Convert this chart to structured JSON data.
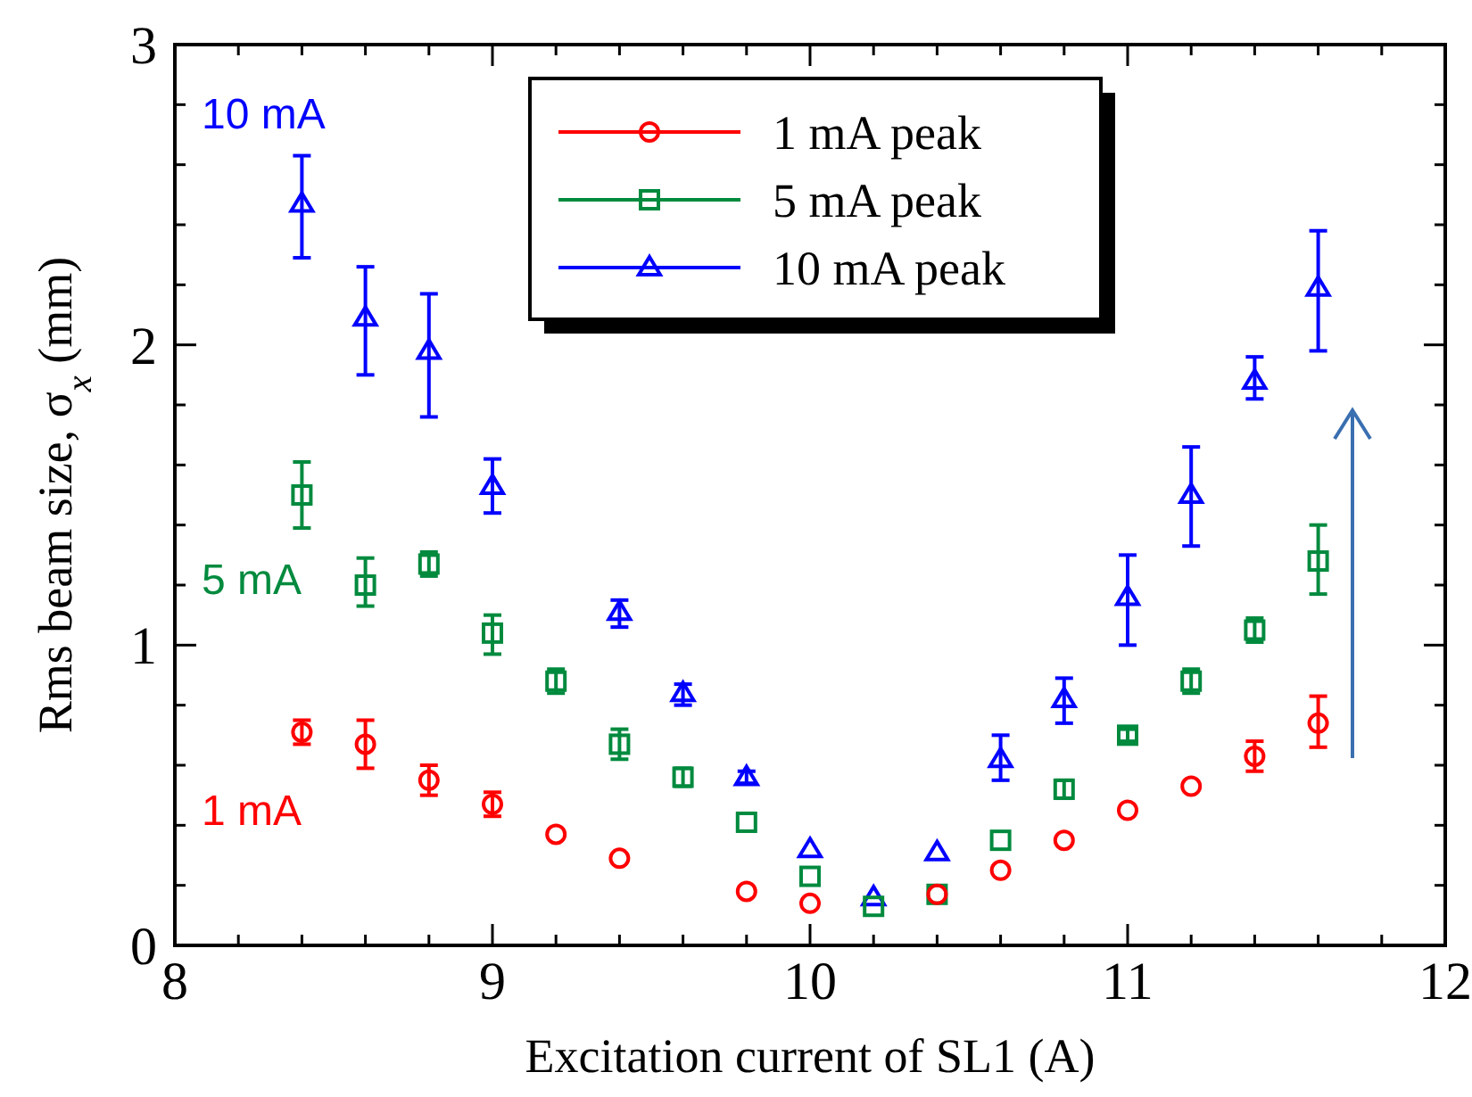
{
  "chart_data": {
    "type": "scatter",
    "xlabel": "Excitation current of SL1 (A)",
    "ylabel": "Rms beam size, σ$_{x}$ (mm)",
    "x": [
      8.4,
      8.6,
      8.8,
      9.0,
      9.2,
      9.4,
      9.6,
      9.8,
      10.0,
      10.2,
      10.4,
      10.6,
      10.8,
      11.0,
      11.2,
      11.4,
      11.6
    ],
    "series": [
      {
        "name": "1 mA peak",
        "color": "#ff0000",
        "marker": "circle",
        "values": [
          0.71,
          0.67,
          0.55,
          0.47,
          0.37,
          0.29,
          null,
          0.18,
          0.14,
          null,
          0.17,
          0.25,
          0.35,
          0.45,
          0.53,
          0.63,
          0.74
        ],
        "errors": [
          [
            0.67,
            0.75
          ],
          [
            0.59,
            0.75
          ],
          [
            0.5,
            0.6
          ],
          [
            0.43,
            0.51
          ],
          null,
          null,
          null,
          null,
          null,
          null,
          null,
          null,
          null,
          null,
          null,
          [
            0.58,
            0.68
          ],
          [
            0.66,
            0.83
          ]
        ]
      },
      {
        "name": "5 mA peak",
        "color": "#008a3e",
        "marker": "square",
        "values": [
          1.5,
          1.2,
          1.27,
          1.04,
          0.88,
          0.67,
          0.56,
          0.41,
          0.23,
          0.13,
          0.17,
          0.35,
          0.52,
          0.7,
          0.88,
          1.05,
          1.28
        ],
        "errors": [
          [
            1.39,
            1.61
          ],
          [
            1.13,
            1.29
          ],
          [
            1.23,
            1.31
          ],
          [
            0.97,
            1.1
          ],
          [
            0.84,
            0.92
          ],
          [
            0.62,
            0.72
          ],
          [
            0.53,
            0.59
          ],
          null,
          null,
          null,
          null,
          null,
          [
            0.49,
            0.55
          ],
          [
            0.68,
            0.72
          ],
          [
            0.84,
            0.92
          ],
          [
            1.01,
            1.09
          ],
          [
            1.17,
            1.4
          ]
        ]
      },
      {
        "name": "10 mA peak",
        "color": "#0000ff",
        "marker": "triangle",
        "values": [
          2.47,
          2.09,
          1.98,
          1.53,
          null,
          1.11,
          0.84,
          0.56,
          0.32,
          0.16,
          0.31,
          0.62,
          0.82,
          1.16,
          1.5,
          1.88,
          2.19
        ],
        "errors": [
          [
            2.29,
            2.63
          ],
          [
            1.9,
            2.26
          ],
          [
            1.76,
            2.17
          ],
          [
            1.44,
            1.62
          ],
          null,
          [
            1.06,
            1.15
          ],
          [
            0.8,
            0.87
          ],
          [
            0.54,
            0.58
          ],
          null,
          null,
          null,
          [
            0.55,
            0.7
          ],
          [
            0.74,
            0.89
          ],
          [
            1.0,
            1.3
          ],
          [
            1.33,
            1.66
          ],
          [
            1.82,
            1.96
          ],
          [
            1.98,
            2.38
          ]
        ]
      }
    ],
    "annotations": [
      "1 mA",
      "5 mA",
      "10 mA"
    ],
    "xlim": [
      8,
      12
    ],
    "xticks": [
      8,
      {
        "value": 8.2,
        "label": null
      },
      {
        "value": 8.4,
        "label": null
      },
      {
        "value": 8.6,
        "label": null
      },
      {
        "value": 8.8,
        "label": null
      },
      9,
      {
        "value": 9.2,
        "label": null
      },
      {
        "value": 9.4,
        "label": null
      },
      {
        "value": 9.6,
        "label": null
      },
      {
        "value": 9.8,
        "label": null
      },
      10,
      {
        "value": 10.2,
        "label": null
      },
      {
        "value": 10.4,
        "label": null
      },
      {
        "value": 10.6,
        "label": null
      },
      {
        "value": 10.8,
        "label": null
      },
      11,
      {
        "value": 11.2,
        "label": null
      },
      {
        "value": 11.4,
        "label": null
      },
      {
        "value": 11.6,
        "label": null
      },
      {
        "value": 11.8,
        "label": null
      },
      12
    ],
    "ylim": [
      0,
      3
    ],
    "yticks": [
      0,
      {
        "value": 0.2,
        "label": null
      },
      {
        "value": 0.4,
        "label": null
      },
      {
        "value": 0.6,
        "label": null
      },
      {
        "value": 0.8,
        "label": null
      },
      1,
      {
        "value": 1.2,
        "label": null
      },
      {
        "value": 1.4,
        "label": null
      },
      {
        "value": 1.6,
        "label": null
      },
      {
        "value": 1.8,
        "label": null
      },
      2,
      {
        "value": 2.2,
        "label": null
      },
      {
        "value": 2.4,
        "label": null
      },
      {
        "value": 2.6,
        "label": null
      },
      {
        "value": 2.8,
        "label": null
      },
      3
    ],
    "grid": false,
    "legend": "top"
  }
}
